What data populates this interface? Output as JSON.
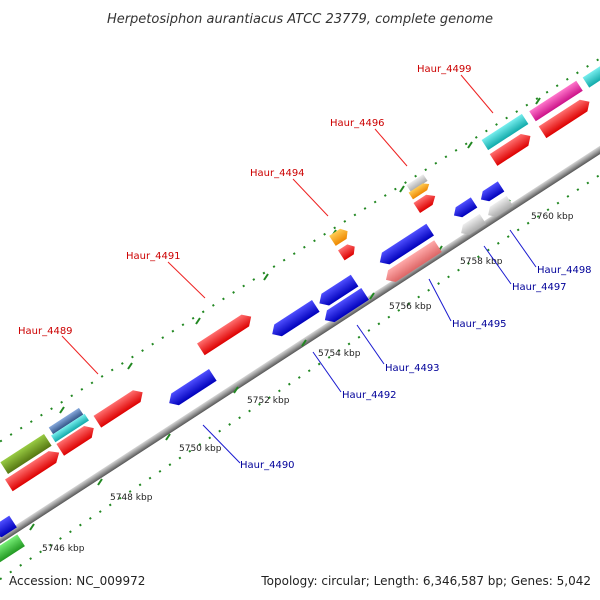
{
  "title": "Herpetosiphon aurantiacus ATCC 23779, complete genome",
  "footer": {
    "accession": "Accession: NC_009972",
    "summary": "Topology: circular; Length: 6,346,587 bp; Genes: 5,042"
  },
  "kbp_labels": [
    "5746 kbp",
    "5748 kbp",
    "5750 kbp",
    "5752 kbp",
    "5754 kbp",
    "5756 kbp",
    "5758 kbp",
    "5760 kbp"
  ],
  "top_labels": [
    "Haur_4489",
    "Haur_4491",
    "Haur_4494",
    "Haur_4496",
    "Haur_4499"
  ],
  "bottom_labels": [
    "Haur_4490",
    "Haur_4492",
    "Haur_4493",
    "Haur_4495",
    "Haur_4497",
    "Haur_4498"
  ],
  "colors": {
    "top_label": "#cc0000",
    "bottom_label": "#000099",
    "backbone": "#888888",
    "tick_green": "#228822",
    "red": "#ff2020",
    "blue": "#1818e0",
    "cyan": "#22cccc",
    "magenta": "#ee2299",
    "orange": "#ff9900",
    "pink": "#ee7777",
    "grey": "#bbbbbb",
    "olive": "#669922",
    "green": "#33bb33",
    "steelblue": "#4477aa"
  }
}
